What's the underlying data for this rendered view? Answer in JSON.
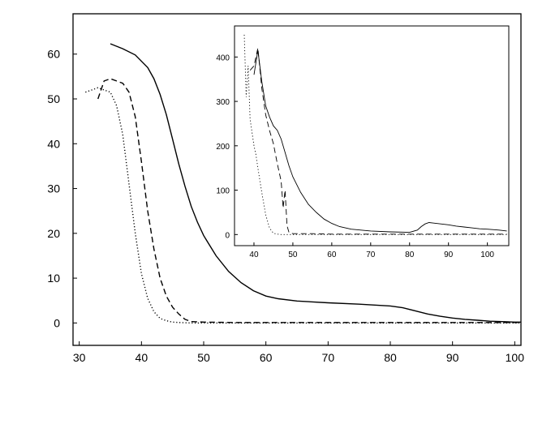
{
  "chart_data": [
    {
      "type": "line",
      "title": "",
      "xlabel": "",
      "ylabel": "",
      "xlim": [
        29,
        101
      ],
      "ylim": [
        -5,
        69
      ],
      "xticks": [
        30,
        40,
        50,
        60,
        70,
        80,
        90,
        100
      ],
      "yticks": [
        0,
        10,
        20,
        30,
        40,
        50,
        60
      ],
      "grid": false,
      "series": [
        {
          "style": "solid",
          "x": [
            35,
            37,
            39,
            41,
            42,
            43,
            44,
            45,
            46,
            47,
            48,
            49,
            50,
            52,
            54,
            56,
            58,
            60,
            62,
            65,
            70,
            75,
            80,
            82,
            84,
            86,
            88,
            90,
            92,
            94,
            96,
            98,
            100,
            101
          ],
          "y": [
            62.3,
            61.2,
            59.8,
            57.0,
            54.5,
            51.0,
            46.5,
            41.0,
            35.5,
            30.5,
            26.0,
            22.5,
            19.5,
            15.0,
            11.5,
            9.0,
            7.2,
            6.0,
            5.4,
            4.9,
            4.5,
            4.2,
            3.8,
            3.4,
            2.7,
            2.0,
            1.5,
            1.1,
            0.8,
            0.6,
            0.4,
            0.3,
            0.2,
            0.2
          ]
        },
        {
          "style": "dashed",
          "x": [
            33,
            34,
            35,
            36,
            37,
            38,
            39,
            40,
            41,
            42,
            43,
            44,
            45,
            46,
            47,
            48,
            50,
            55,
            60,
            70,
            80,
            90,
            100,
            101
          ],
          "y": [
            50.0,
            54.0,
            54.5,
            54.0,
            53.5,
            51.5,
            46.0,
            36.0,
            25.0,
            16.5,
            10.0,
            6.0,
            3.5,
            2.0,
            0.8,
            0.3,
            0.2,
            0.1,
            0.1,
            0.1,
            0.1,
            0.1,
            0.1,
            0.1
          ]
        },
        {
          "style": "dotted",
          "x": [
            31,
            32,
            33,
            34,
            35,
            36,
            37,
            38,
            39,
            40,
            41,
            42,
            43,
            44,
            45,
            46,
            48,
            50,
            60,
            70,
            80,
            90,
            100,
            101
          ],
          "y": [
            51.5,
            52.0,
            52.5,
            52.0,
            51.5,
            48.5,
            42.0,
            31.0,
            20.0,
            11.0,
            5.5,
            2.5,
            1.0,
            0.5,
            0.2,
            0.1,
            0.0,
            0.0,
            0.0,
            0.0,
            0.0,
            0.0,
            0.0,
            0.0
          ]
        }
      ]
    },
    {
      "type": "line",
      "title": "",
      "xlabel": "",
      "ylabel": "",
      "xlim": [
        35,
        105.5
      ],
      "ylim": [
        -25,
        470
      ],
      "xticks": [
        40,
        50,
        60,
        70,
        80,
        90,
        100
      ],
      "yticks": [
        0,
        100,
        200,
        300,
        400
      ],
      "grid": false,
      "series": [
        {
          "style": "solid",
          "x": [
            40,
            41,
            42,
            43,
            44,
            45,
            46,
            47,
            48,
            49,
            50,
            52,
            54,
            56,
            58,
            60,
            62,
            65,
            70,
            75,
            80,
            82,
            83,
            84,
            85,
            86,
            88,
            90,
            92,
            94,
            96,
            98,
            100,
            103,
            105
          ],
          "y": [
            360,
            415,
            345,
            290,
            265,
            245,
            235,
            215,
            185,
            155,
            130,
            95,
            68,
            50,
            35,
            25,
            18,
            12,
            8,
            6,
            5,
            10,
            18,
            24,
            27,
            26,
            24,
            22,
            19,
            17,
            15,
            13,
            12,
            10,
            8
          ]
        },
        {
          "style": "dashed",
          "x": [
            39,
            40,
            41,
            42,
            43,
            44,
            45,
            46,
            47,
            47.5,
            48,
            48.5,
            49,
            50,
            55,
            60,
            70,
            80,
            90,
            100,
            105
          ],
          "y": [
            370,
            380,
            420,
            330,
            270,
            235,
            205,
            160,
            120,
            60,
            100,
            20,
            5,
            2,
            2,
            1,
            1,
            1,
            1,
            1,
            1
          ]
        },
        {
          "style": "dotted",
          "x": [
            37.5,
            38,
            38.5,
            39,
            39.5,
            40,
            40.5,
            41,
            42,
            43,
            44,
            45,
            46,
            47,
            50,
            60,
            70,
            80,
            90,
            100,
            105
          ],
          "y": [
            450,
            310,
            380,
            260,
            230,
            200,
            180,
            150,
            95,
            45,
            15,
            3,
            1,
            0,
            0,
            0,
            0,
            0,
            0,
            0,
            0
          ]
        }
      ]
    }
  ]
}
